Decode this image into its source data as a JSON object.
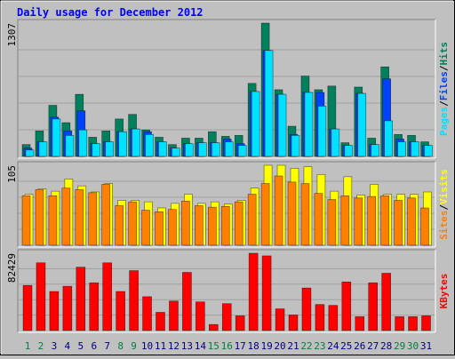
{
  "title": "Daily usage for December 2012",
  "legend_separator": "/",
  "chart_data": [
    {
      "type": "bar",
      "ylim": [
        0,
        1307
      ],
      "yticks": [
        1307
      ],
      "series": [
        {
          "name": "Hits",
          "color": "#00805c",
          "values": [
            116,
            250,
            501,
            331,
            609,
            188,
            250,
            367,
            412,
            260,
            188,
            116,
            179,
            179,
            242,
            197,
            206,
            716,
            1307,
            654,
            296,
            788,
            654,
            690,
            134,
            680,
            179,
            878,
            215,
            206,
            143
          ]
        },
        {
          "name": "Files",
          "color": "#0040ff",
          "values": [
            81,
            143,
            385,
            250,
            448,
            125,
            143,
            242,
            269,
            242,
            143,
            81,
            125,
            134,
            134,
            170,
            125,
            636,
            1039,
            609,
            215,
            627,
            627,
            269,
            107,
            618,
            116,
            761,
            170,
            143,
            107
          ]
        },
        {
          "name": "Pages",
          "color": "#00e0ff",
          "values": [
            63,
            143,
            367,
            206,
            260,
            125,
            143,
            242,
            269,
            215,
            143,
            81,
            125,
            134,
            134,
            143,
            107,
            636,
            1039,
            609,
            206,
            627,
            493,
            269,
            107,
            618,
            116,
            349,
            143,
            143,
            107
          ]
        }
      ]
    },
    {
      "type": "bar",
      "ylim": [
        0,
        105
      ],
      "yticks": [
        105
      ],
      "series": [
        {
          "name": "Visits",
          "color": "#ffff00",
          "values": [
            67,
            74,
            71,
            87,
            78,
            70,
            81,
            59,
            59,
            57,
            49,
            55,
            67,
            55,
            57,
            54,
            59,
            75,
            105,
            105,
            101,
            103,
            93,
            71,
            90,
            66,
            80,
            67,
            67,
            67,
            70
          ]
        },
        {
          "name": "Sites",
          "color": "#ff8000",
          "values": [
            65,
            73,
            65,
            75,
            73,
            69,
            80,
            52,
            57,
            46,
            44,
            47,
            58,
            52,
            50,
            51,
            57,
            67,
            81,
            91,
            83,
            81,
            68,
            60,
            65,
            62,
            64,
            65,
            59,
            62,
            49
          ]
        }
      ]
    },
    {
      "type": "bar",
      "ylim": [
        0,
        82429
      ],
      "yticks": [
        82429
      ],
      "categories": [
        "1",
        "2",
        "3",
        "4",
        "5",
        "6",
        "7",
        "8",
        "9",
        "10",
        "11",
        "12",
        "13",
        "14",
        "15",
        "16",
        "17",
        "18",
        "19",
        "20",
        "21",
        "22",
        "23",
        "24",
        "25",
        "26",
        "27",
        "28",
        "29",
        "30",
        "31"
      ],
      "category_colors": [
        "#008040",
        "#008040",
        "#000080",
        "#000080",
        "#000080",
        "#000080",
        "#000080",
        "#008040",
        "#008040",
        "#000080",
        "#000080",
        "#000080",
        "#000080",
        "#000080",
        "#008040",
        "#008040",
        "#000080",
        "#000080",
        "#000080",
        "#000080",
        "#000080",
        "#008040",
        "#008040",
        "#000080",
        "#000080",
        "#000080",
        "#000080",
        "#000080",
        "#008040",
        "#008040",
        "#000080"
      ],
      "series": [
        {
          "name": "KBytes",
          "color": "#ff0000",
          "values": [
            48161,
            72243,
            41677,
            47235,
            67612,
            50940,
            72243,
            41677,
            63907,
            36121,
            19450,
            31490,
            62055,
            30564,
            6483,
            28712,
            15745,
            82429,
            79651,
            23155,
            16671,
            45383,
            27786,
            26859,
            51866,
            14819,
            50940,
            61128,
            14819,
            14819,
            15745
          ]
        }
      ]
    }
  ]
}
